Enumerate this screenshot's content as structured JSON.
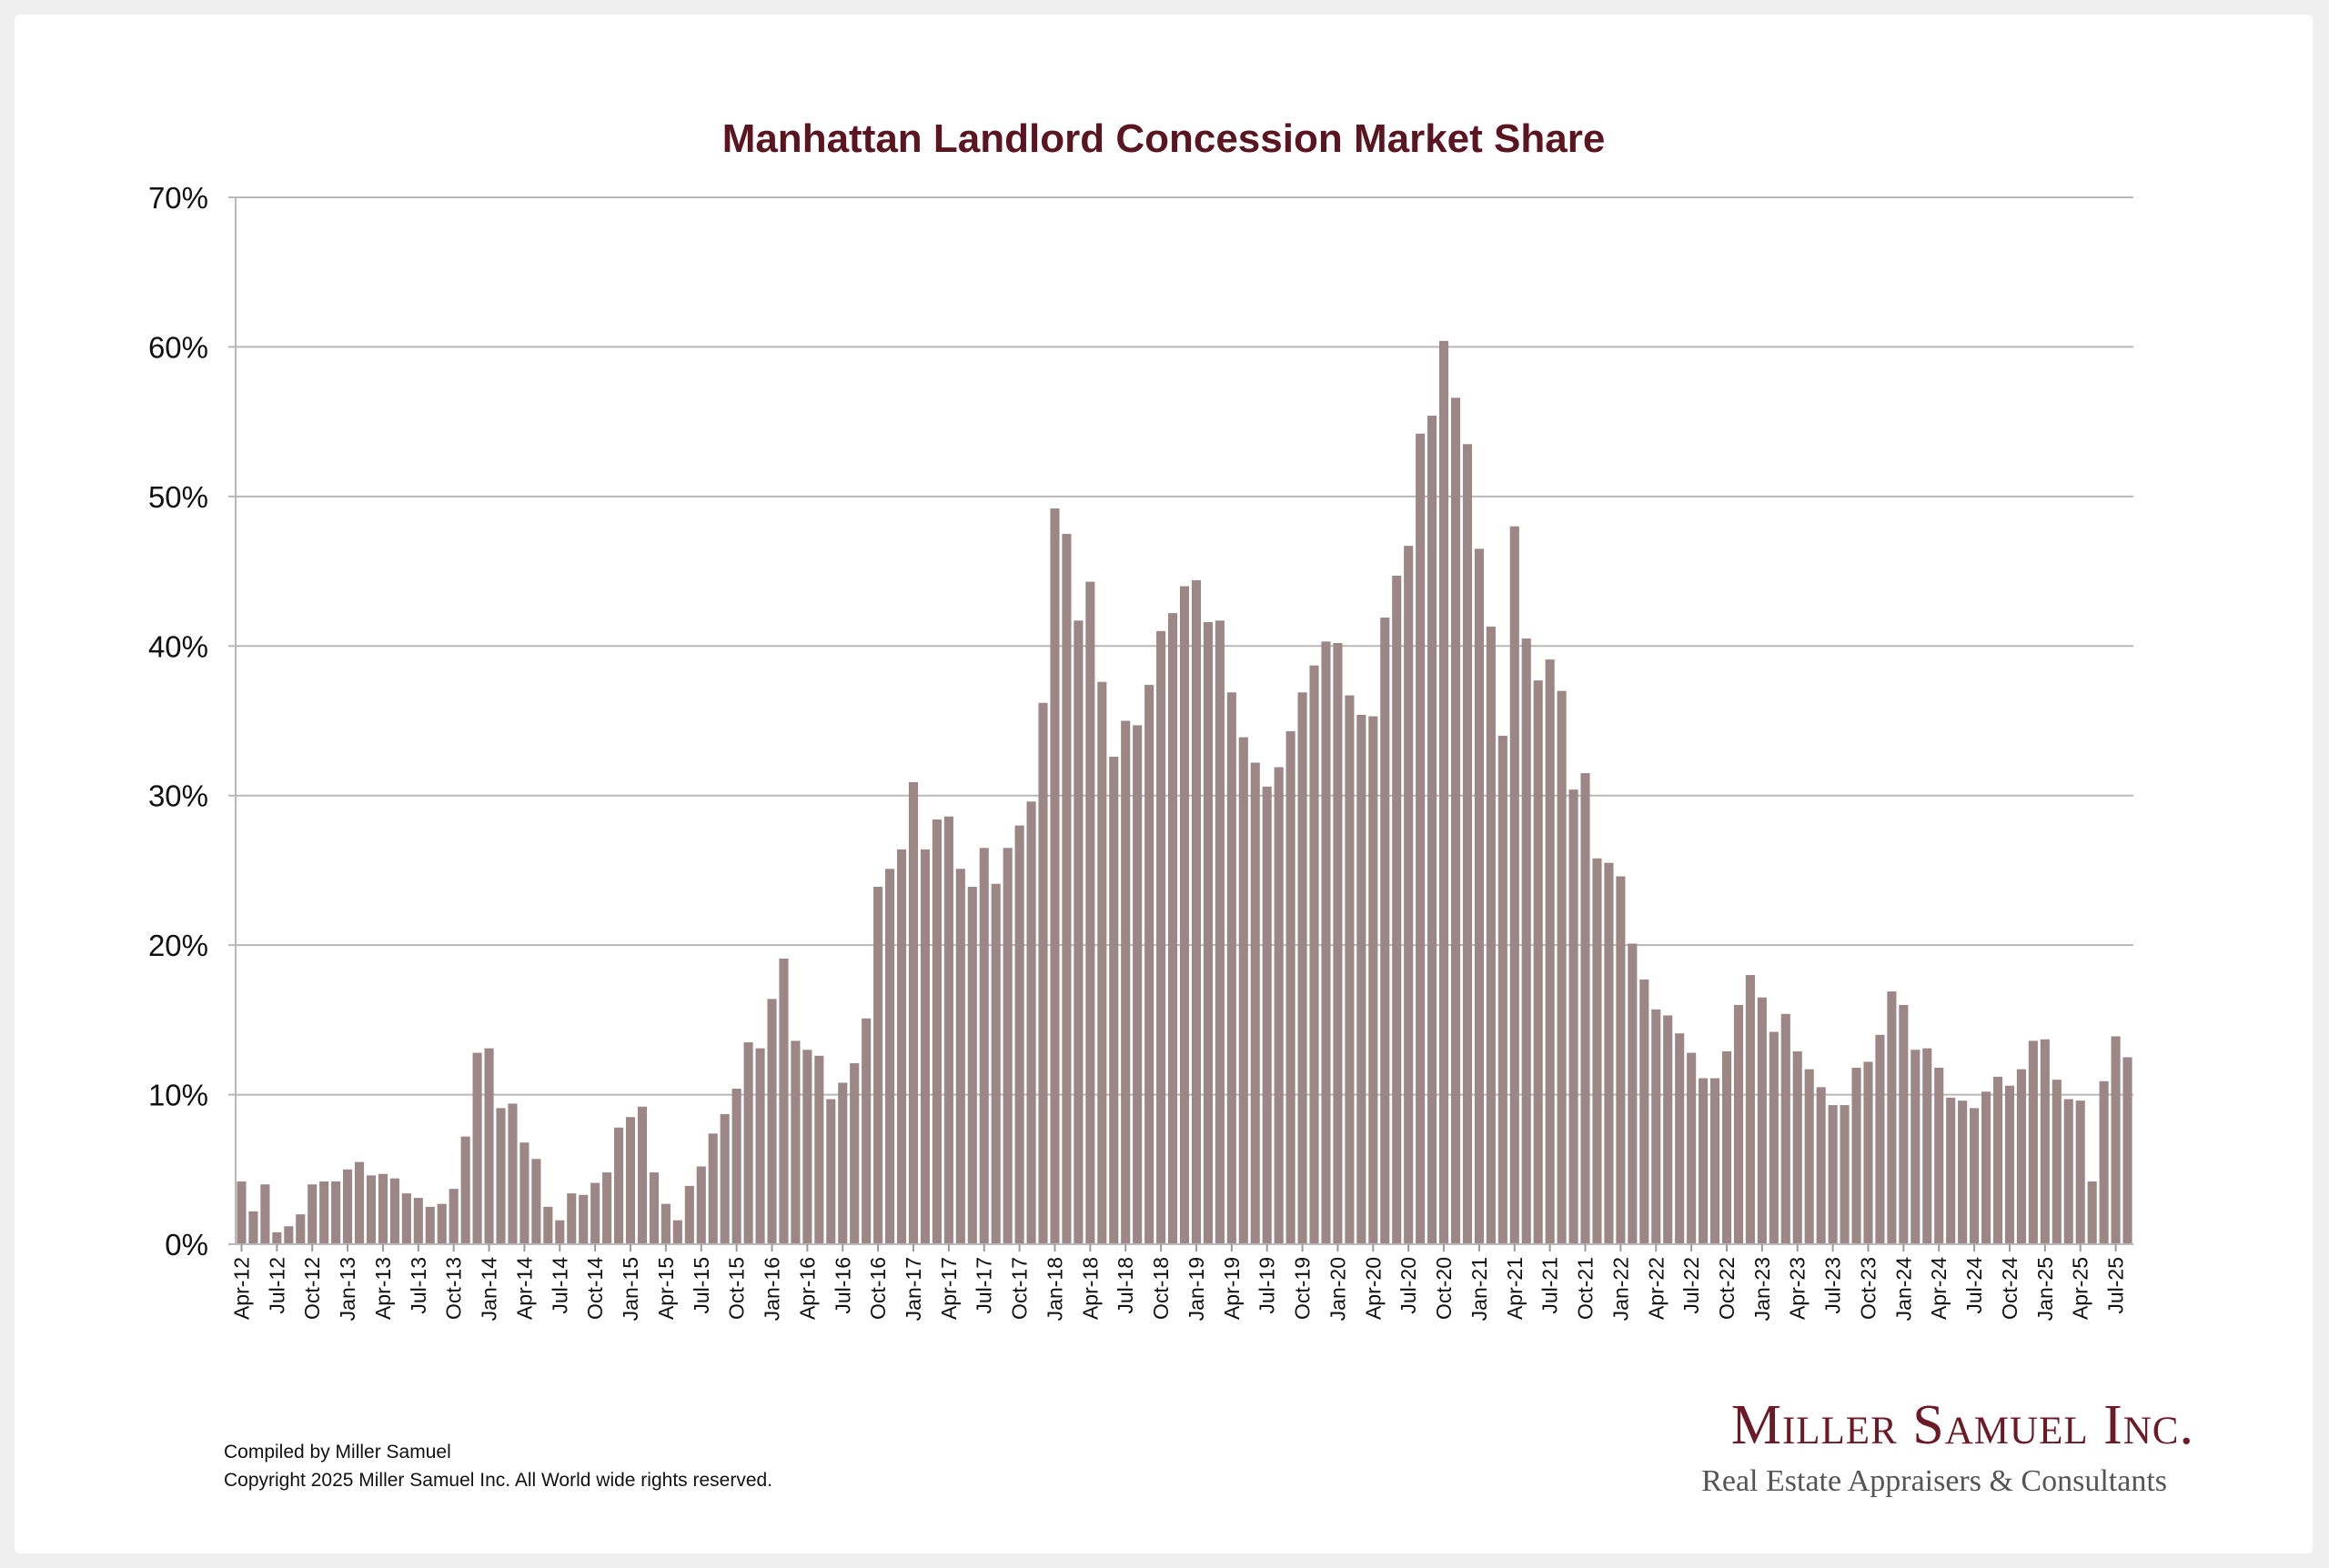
{
  "chart_data": {
    "type": "bar",
    "title": "Manhattan Landlord Concession Market Share",
    "xlabel": "",
    "ylabel": "",
    "ylim": [
      0,
      70
    ],
    "yticks": [
      "0%",
      "10%",
      "20%",
      "30%",
      "40%",
      "50%",
      "60%",
      "70%"
    ],
    "grid": true,
    "legend": "none",
    "bar_color": "#9c8786",
    "start_month": "Apr-12",
    "tick_labels": [
      "Apr-12",
      "Jul-12",
      "Oct-12",
      "Jan-13",
      "Apr-13",
      "Jul-13",
      "Oct-13",
      "Jan-14",
      "Apr-14",
      "Jul-14",
      "Oct-14",
      "Jan-15",
      "Apr-15",
      "Jul-15",
      "Oct-15",
      "Jan-16",
      "Apr-16",
      "Jul-16",
      "Oct-16",
      "Jan-17",
      "Apr-17",
      "Jul-17",
      "Oct-17",
      "Jan-18",
      "Apr-18",
      "Jul-18",
      "Oct-18",
      "Jan-19",
      "Apr-19",
      "Jul-19",
      "Oct-19",
      "Jan-20",
      "Apr-20",
      "Jul-20",
      "Oct-20",
      "Jan-21",
      "Apr-21",
      "Jul-21",
      "Oct-21",
      "Jan-22",
      "Apr-22",
      "Jul-22",
      "Oct-22",
      "Jan-23",
      "Apr-23",
      "Jul-23",
      "Oct-23",
      "Jan-24",
      "Apr-24",
      "Jul-24",
      "Oct-24",
      "Jan-25",
      "Apr-25",
      "Jul-25"
    ],
    "values": [
      4.2,
      2.2,
      4.0,
      0.8,
      1.2,
      2.0,
      4.0,
      4.2,
      4.2,
      5.0,
      5.5,
      4.6,
      4.7,
      4.4,
      3.4,
      3.1,
      2.5,
      2.7,
      3.7,
      7.2,
      12.8,
      13.1,
      9.1,
      9.4,
      6.8,
      5.7,
      2.5,
      1.6,
      3.4,
      3.3,
      4.1,
      4.8,
      7.8,
      8.5,
      9.2,
      4.8,
      2.7,
      1.6,
      3.9,
      5.2,
      7.4,
      8.7,
      10.4,
      13.5,
      13.1,
      16.4,
      19.1,
      13.6,
      13.0,
      12.6,
      9.7,
      10.8,
      12.1,
      15.1,
      23.9,
      25.1,
      26.4,
      30.9,
      26.4,
      28.4,
      28.6,
      25.1,
      23.9,
      26.5,
      24.1,
      26.5,
      28.0,
      29.6,
      36.2,
      49.2,
      47.5,
      41.7,
      44.3,
      37.6,
      32.6,
      35.0,
      34.7,
      37.4,
      41.0,
      42.2,
      44.0,
      44.4,
      41.6,
      41.7,
      36.9,
      33.9,
      32.2,
      30.6,
      31.9,
      34.3,
      36.9,
      38.7,
      40.3,
      40.2,
      36.7,
      35.4,
      35.3,
      41.9,
      44.7,
      46.7,
      54.2,
      55.4,
      60.4,
      56.6,
      53.5,
      46.5,
      41.3,
      34.0,
      48.0,
      40.5,
      37.7,
      39.1,
      37.0,
      30.4,
      31.5,
      25.8,
      25.5,
      24.6,
      20.1,
      17.7,
      15.7,
      15.3,
      14.1,
      12.8,
      11.1,
      11.1,
      12.9,
      16.0,
      18.0,
      16.5,
      14.2,
      15.4,
      12.9,
      11.7,
      10.5,
      9.3,
      9.3,
      11.8,
      12.2,
      14.0,
      16.9,
      16.0,
      13.0,
      13.1,
      11.8,
      9.8,
      9.6,
      9.1,
      10.2,
      11.2,
      10.6,
      11.7,
      13.6,
      13.7,
      11.0,
      9.7,
      9.6,
      4.2,
      10.9,
      13.9,
      12.5
    ]
  },
  "footer": {
    "compiled": "Compiled by Miller Samuel",
    "copyright": "Copyright 2025 Miller Samuel Inc.  All World wide rights reserved."
  },
  "logo": {
    "name": "Miller Samuel Inc.",
    "tagline": "Real Estate Appraisers & Consultants"
  },
  "colors": {
    "title": "#5a1521",
    "bar": "#9c8786",
    "grid": "#b8b8b8"
  }
}
